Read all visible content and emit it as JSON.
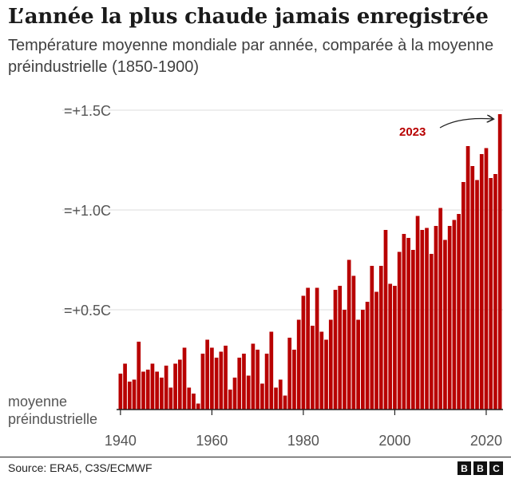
{
  "header": {
    "title": "L’année la plus chaude jamais enregistrée",
    "subtitle": "Température moyenne mondiale par année, comparée à la moyenne préindustrielle (1850-1900)"
  },
  "footer": {
    "source": "Source: ERA5, C3S/ECMWF",
    "logo_letters": [
      "B",
      "B",
      "C"
    ]
  },
  "colors": {
    "bar": "#b80000",
    "grid": "#dcdcdc",
    "axis": "#222222",
    "label": "#555555",
    "annotation": "#b80000"
  },
  "chart_data": {
    "type": "bar",
    "x": [
      1940,
      1941,
      1942,
      1943,
      1944,
      1945,
      1946,
      1947,
      1948,
      1949,
      1950,
      1951,
      1952,
      1953,
      1954,
      1955,
      1956,
      1957,
      1958,
      1959,
      1960,
      1961,
      1962,
      1963,
      1964,
      1965,
      1966,
      1967,
      1968,
      1969,
      1970,
      1971,
      1972,
      1973,
      1974,
      1975,
      1976,
      1977,
      1978,
      1979,
      1980,
      1981,
      1982,
      1983,
      1984,
      1985,
      1986,
      1987,
      1988,
      1989,
      1990,
      1991,
      1992,
      1993,
      1994,
      1995,
      1996,
      1997,
      1998,
      1999,
      2000,
      2001,
      2002,
      2003,
      2004,
      2005,
      2006,
      2007,
      2008,
      2009,
      2010,
      2011,
      2012,
      2013,
      2014,
      2015,
      2016,
      2017,
      2018,
      2019,
      2020,
      2021,
      2022,
      2023
    ],
    "values": [
      0.18,
      0.23,
      0.14,
      0.15,
      0.34,
      0.19,
      0.2,
      0.23,
      0.19,
      0.16,
      0.22,
      0.11,
      0.23,
      0.25,
      0.31,
      0.11,
      0.08,
      0.03,
      0.28,
      0.35,
      0.31,
      0.26,
      0.29,
      0.32,
      0.1,
      0.16,
      0.26,
      0.28,
      0.17,
      0.33,
      0.3,
      0.13,
      0.28,
      0.39,
      0.11,
      0.15,
      0.07,
      0.36,
      0.3,
      0.45,
      0.57,
      0.61,
      0.42,
      0.61,
      0.39,
      0.35,
      0.45,
      0.6,
      0.62,
      0.5,
      0.75,
      0.67,
      0.45,
      0.5,
      0.54,
      0.72,
      0.59,
      0.72,
      0.9,
      0.63,
      0.62,
      0.79,
      0.88,
      0.86,
      0.8,
      0.97,
      0.9,
      0.91,
      0.78,
      0.92,
      1.01,
      0.85,
      0.92,
      0.95,
      0.98,
      1.14,
      1.32,
      1.22,
      1.15,
      1.28,
      1.31,
      1.16,
      1.18,
      1.48
    ],
    "title": "L’année la plus chaude jamais enregistrée",
    "subtitle": "Température moyenne mondiale par année, comparée à la moyenne préindustrielle (1850-1900)",
    "xlabel": "",
    "ylabel": "",
    "ylim": [
      0,
      1.5
    ],
    "xlim": [
      1940,
      2023
    ],
    "y_ticks": [
      {
        "value": 1.5,
        "label": "=+1.5C"
      },
      {
        "value": 1.0,
        "label": "=+1.0C"
      },
      {
        "value": 0.5,
        "label": "=+0.5C"
      }
    ],
    "baseline_label": [
      "moyenne",
      "préindustrielle"
    ],
    "x_ticks": [
      1940,
      1960,
      1980,
      2000,
      2020
    ],
    "grid": true,
    "legend": "none",
    "annotation": {
      "label": "2023",
      "year": 2023
    }
  }
}
